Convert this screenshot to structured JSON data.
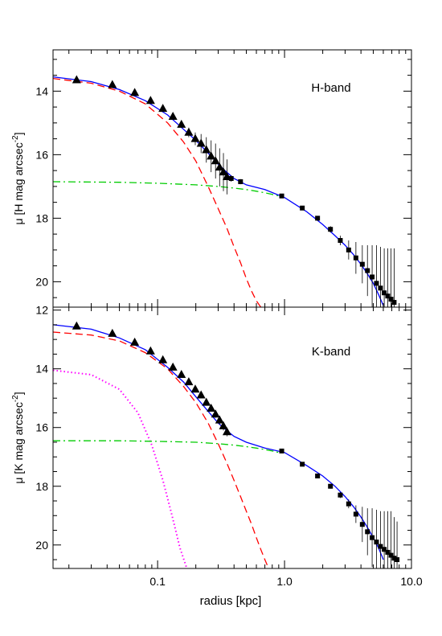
{
  "figure": {
    "shared_xlabel": "radius [kpc]",
    "x_tick_labels": [
      "0.1",
      "1.0",
      "10.0"
    ]
  },
  "chart_data": [
    {
      "type": "scatter",
      "panel_label": "H-band",
      "xlabel": "radius [kpc]",
      "ylabel_main": "μ [H mag arcsec",
      "ylabel_sup": "-2",
      "ylabel_end": "]",
      "xscale": "log",
      "xlim": [
        0.015,
        10.0
      ],
      "ylim": [
        20.8,
        12.7
      ],
      "y_inverted": true,
      "y_ticks": [
        14,
        16,
        18,
        20
      ],
      "y_tick_labels": [
        "14",
        "16",
        "18",
        "20"
      ],
      "series": [
        {
          "marker": "triangle",
          "color": "#000000",
          "x": [
            0.023,
            0.044,
            0.066,
            0.088,
            0.11,
            0.132,
            0.154,
            0.176,
            0.198,
            0.22,
            0.242,
            0.264,
            0.286,
            0.308,
            0.33,
            0.352
          ],
          "y": [
            13.65,
            13.8,
            14.05,
            14.3,
            14.55,
            14.8,
            15.05,
            15.3,
            15.5,
            15.65,
            15.85,
            16.05,
            16.2,
            16.4,
            16.55,
            16.7
          ],
          "yerr": [
            0,
            0,
            0,
            0,
            0,
            0.05,
            0.1,
            0.15,
            0.2,
            0.3,
            0.4,
            0.5,
            0.55,
            0.6,
            0.6,
            0.55
          ]
        },
        {
          "marker": "square",
          "color": "#000000",
          "x": [
            0.38,
            0.45,
            0.95,
            1.38,
            1.82,
            2.3,
            2.75,
            3.2,
            3.65,
            4.1,
            4.5,
            4.9,
            5.3,
            5.7,
            6.1,
            6.5,
            6.9,
            7.3
          ],
          "y": [
            16.75,
            16.85,
            17.3,
            17.68,
            18.0,
            18.35,
            18.7,
            19.0,
            19.25,
            19.45,
            19.65,
            19.85,
            20.05,
            20.2,
            20.35,
            20.45,
            20.55,
            20.65
          ],
          "yerr": [
            0.1,
            0.08,
            0.05,
            0.05,
            0.07,
            0.1,
            0.15,
            0.3,
            0.5,
            0.6,
            0.8,
            1.0,
            1.2,
            1.3,
            1.4,
            1.5,
            1.6,
            1.7
          ]
        }
      ],
      "model_curves": [
        {
          "style": "dashed",
          "color": "#ff0000",
          "x": [
            0.015,
            0.03,
            0.05,
            0.08,
            0.12,
            0.16,
            0.2,
            0.25,
            0.3,
            0.35,
            0.4,
            0.45,
            0.5,
            0.55,
            0.6,
            0.65
          ],
          "y": [
            13.6,
            13.75,
            14.0,
            14.4,
            15.0,
            15.6,
            16.2,
            17.0,
            17.7,
            18.3,
            18.9,
            19.4,
            19.9,
            20.3,
            20.6,
            20.8
          ]
        },
        {
          "style": "dashdot",
          "color": "#00cc00",
          "x": [
            0.015,
            0.05,
            0.1,
            0.2,
            0.3,
            0.4,
            0.5,
            0.6,
            0.7,
            0.8,
            0.9
          ],
          "y": [
            16.85,
            16.87,
            16.9,
            16.95,
            17.0,
            17.05,
            17.1,
            17.15,
            17.2,
            17.25,
            17.3
          ]
        },
        {
          "style": "solid",
          "color": "#0000ff",
          "x": [
            0.015,
            0.03,
            0.05,
            0.08,
            0.12,
            0.16,
            0.2,
            0.25,
            0.3,
            0.35,
            0.4,
            0.5,
            0.7,
            1.0,
            1.5,
            2.0,
            2.5,
            3.0,
            3.5,
            4.0,
            4.5,
            5.0,
            5.5,
            6.0
          ],
          "y": [
            13.55,
            13.7,
            13.95,
            14.3,
            14.75,
            15.2,
            15.55,
            15.95,
            16.3,
            16.55,
            16.75,
            16.95,
            17.1,
            17.35,
            17.8,
            18.2,
            18.55,
            18.85,
            19.15,
            19.45,
            19.75,
            20.05,
            20.4,
            20.75
          ]
        }
      ]
    },
    {
      "type": "scatter",
      "panel_label": "K-band",
      "xlabel": "radius [kpc]",
      "ylabel_main": "μ [K mag arcsec",
      "ylabel_sup": "-2",
      "ylabel_end": "]",
      "xscale": "log",
      "xlim": [
        0.015,
        10.0
      ],
      "ylim": [
        20.8,
        11.9
      ],
      "y_inverted": true,
      "y_ticks": [
        12,
        14,
        16,
        18,
        20
      ],
      "y_tick_labels": [
        "12",
        "14",
        "16",
        "18",
        "20"
      ],
      "series": [
        {
          "marker": "triangle",
          "color": "#000000",
          "x": [
            0.023,
            0.044,
            0.066,
            0.088,
            0.11,
            0.132,
            0.154,
            0.176,
            0.198,
            0.22,
            0.242,
            0.264,
            0.286,
            0.308,
            0.33,
            0.352
          ],
          "y": [
            12.55,
            12.8,
            13.1,
            13.4,
            13.7,
            13.95,
            14.2,
            14.45,
            14.7,
            14.9,
            15.15,
            15.35,
            15.55,
            15.75,
            15.95,
            16.15
          ],
          "yerr": [
            0,
            0,
            0,
            0,
            0,
            0,
            0,
            0,
            0.05,
            0.05,
            0.1,
            0.1,
            0.12,
            0.15,
            0.15,
            0.15
          ]
        },
        {
          "marker": "square",
          "color": "#000000",
          "x": [
            0.95,
            1.38,
            1.82,
            2.3,
            2.75,
            3.2,
            3.65,
            4.1,
            4.5,
            4.9,
            5.3,
            5.7,
            6.1,
            6.5,
            6.9,
            7.3,
            7.7
          ],
          "y": [
            16.8,
            17.25,
            17.65,
            18.0,
            18.3,
            18.6,
            18.95,
            19.3,
            19.55,
            19.75,
            19.9,
            20.05,
            20.15,
            20.25,
            20.35,
            20.45,
            20.5
          ],
          "yerr": [
            0.05,
            0.05,
            0.06,
            0.08,
            0.1,
            0.15,
            0.3,
            0.6,
            0.8,
            1.0,
            1.1,
            1.2,
            1.3,
            1.4,
            1.5,
            1.4,
            1.3
          ]
        }
      ],
      "model_curves": [
        {
          "style": "dashed",
          "color": "#ff0000",
          "x": [
            0.015,
            0.03,
            0.05,
            0.08,
            0.12,
            0.16,
            0.2,
            0.25,
            0.3,
            0.35,
            0.4,
            0.45,
            0.5,
            0.55,
            0.6,
            0.65,
            0.7,
            0.75
          ],
          "y": [
            12.75,
            12.85,
            13.05,
            13.45,
            14.0,
            14.6,
            15.15,
            15.85,
            16.55,
            17.2,
            17.8,
            18.35,
            18.85,
            19.3,
            19.75,
            20.15,
            20.5,
            20.8
          ]
        },
        {
          "style": "dotted",
          "color": "#ff00ff",
          "x": [
            0.015,
            0.03,
            0.05,
            0.07,
            0.09,
            0.11,
            0.13,
            0.15,
            0.17
          ],
          "y": [
            14.05,
            14.2,
            14.7,
            15.5,
            16.6,
            17.8,
            19.0,
            20.1,
            20.8
          ]
        },
        {
          "style": "dashdot",
          "color": "#00cc00",
          "x": [
            0.015,
            0.05,
            0.1,
            0.2,
            0.3,
            0.4,
            0.5,
            0.6,
            0.7,
            0.8,
            0.9
          ],
          "y": [
            16.45,
            16.45,
            16.47,
            16.5,
            16.55,
            16.6,
            16.65,
            16.7,
            16.75,
            16.8,
            16.85
          ]
        },
        {
          "style": "solid",
          "color": "#0000ff",
          "x": [
            0.015,
            0.03,
            0.05,
            0.08,
            0.12,
            0.16,
            0.2,
            0.25,
            0.3,
            0.35,
            0.4,
            0.5,
            0.7,
            1.0,
            1.5,
            2.0,
            2.5,
            3.0,
            3.5,
            4.0,
            4.5,
            5.0,
            5.5,
            6.0
          ],
          "y": [
            12.5,
            12.65,
            12.95,
            13.35,
            13.95,
            14.45,
            14.95,
            15.45,
            15.85,
            16.1,
            16.3,
            16.5,
            16.7,
            16.85,
            17.3,
            17.65,
            18.0,
            18.35,
            18.7,
            19.05,
            19.4,
            19.75,
            20.1,
            20.5
          ]
        }
      ]
    }
  ]
}
